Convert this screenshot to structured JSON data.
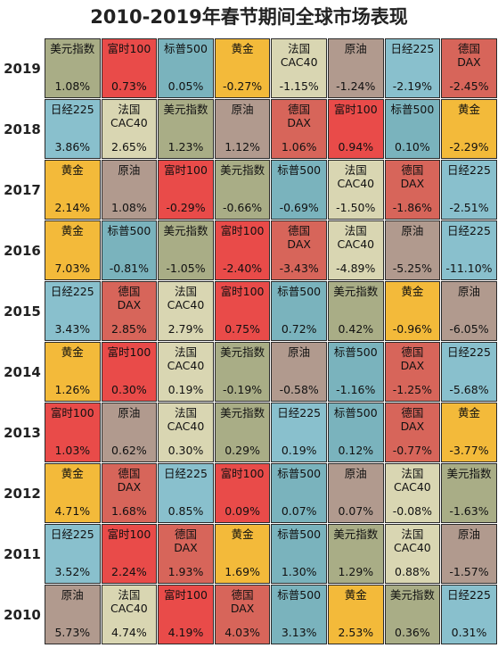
{
  "colors": {
    "美元指数": "#a9ad86",
    "富时100": "#e94b49",
    "标普500": "#7ab3bd",
    "黄金": "#f3ba3a",
    "法国\nCAC40": "#d9d6b2",
    "原油": "#b19a8e",
    "日经225": "#89c0cd",
    "德国\nDAX": "#d7655a"
  },
  "chart_data": {
    "type": "table",
    "title": "2010-2019年春节期间全球市场表现",
    "rows": [
      {
        "year": "2019",
        "cells": [
          {
            "name": "美元指数",
            "value": "1.08%"
          },
          {
            "name": "富时100",
            "value": "0.73%"
          },
          {
            "name": "标普500",
            "value": "0.05%"
          },
          {
            "name": "黄金",
            "value": "-0.27%"
          },
          {
            "name": "法国\nCAC40",
            "value": "-1.15%"
          },
          {
            "name": "原油",
            "value": "-1.24%"
          },
          {
            "name": "日经225",
            "value": "-2.19%"
          },
          {
            "name": "德国\nDAX",
            "value": "-2.45%"
          }
        ]
      },
      {
        "year": "2018",
        "cells": [
          {
            "name": "日经225",
            "value": "3.86%"
          },
          {
            "name": "法国\nCAC40",
            "value": "2.65%"
          },
          {
            "name": "美元指数",
            "value": "1.23%"
          },
          {
            "name": "原油",
            "value": "1.12%"
          },
          {
            "name": "德国\nDAX",
            "value": "1.06%"
          },
          {
            "name": "富时100",
            "value": "0.94%"
          },
          {
            "name": "标普500",
            "value": "0.10%"
          },
          {
            "name": "黄金",
            "value": "-2.29%"
          }
        ]
      },
      {
        "year": "2017",
        "cells": [
          {
            "name": "黄金",
            "value": "2.14%"
          },
          {
            "name": "原油",
            "value": "1.08%"
          },
          {
            "name": "富时100",
            "value": "-0.29%"
          },
          {
            "name": "美元指数",
            "value": "-0.66%"
          },
          {
            "name": "标普500",
            "value": "-0.69%"
          },
          {
            "name": "法国\nCAC40",
            "value": "-1.50%"
          },
          {
            "name": "德国\nDAX",
            "value": "-1.86%"
          },
          {
            "name": "日经225",
            "value": "-2.51%"
          }
        ]
      },
      {
        "year": "2016",
        "cells": [
          {
            "name": "黄金",
            "value": "7.03%"
          },
          {
            "name": "标普500",
            "value": "-0.81%"
          },
          {
            "name": "美元指数",
            "value": "-1.05%"
          },
          {
            "name": "富时100",
            "value": "-2.40%"
          },
          {
            "name": "德国\nDAX",
            "value": "-3.43%"
          },
          {
            "name": "法国\nCAC40",
            "value": "-4.89%"
          },
          {
            "name": "原油",
            "value": "-5.25%"
          },
          {
            "name": "日经225",
            "value": "-11.10%"
          }
        ]
      },
      {
        "year": "2015",
        "cells": [
          {
            "name": "日经225",
            "value": "3.43%"
          },
          {
            "name": "德国\nDAX",
            "value": "2.85%"
          },
          {
            "name": "法国\nCAC40",
            "value": "2.79%"
          },
          {
            "name": "富时100",
            "value": "0.75%"
          },
          {
            "name": "标普500",
            "value": "0.72%"
          },
          {
            "name": "美元指数",
            "value": "0.42%"
          },
          {
            "name": "黄金",
            "value": "-0.96%"
          },
          {
            "name": "原油",
            "value": "-6.05%"
          }
        ]
      },
      {
        "year": "2014",
        "cells": [
          {
            "name": "黄金",
            "value": "1.26%"
          },
          {
            "name": "富时100",
            "value": "0.30%"
          },
          {
            "name": "法国\nCAC40",
            "value": "0.19%"
          },
          {
            "name": "美元指数",
            "value": "-0.19%"
          },
          {
            "name": "原油",
            "value": "-0.58%"
          },
          {
            "name": "标普500",
            "value": "-1.16%"
          },
          {
            "name": "德国\nDAX",
            "value": "-1.25%"
          },
          {
            "name": "日经225",
            "value": "-5.68%"
          }
        ]
      },
      {
        "year": "2013",
        "cells": [
          {
            "name": "富时100",
            "value": "1.03%"
          },
          {
            "name": "原油",
            "value": "0.62%"
          },
          {
            "name": "法国\nCAC40",
            "value": "0.30%"
          },
          {
            "name": "美元指数",
            "value": "0.29%"
          },
          {
            "name": "日经225",
            "value": "0.19%"
          },
          {
            "name": "标普500",
            "value": "0.12%"
          },
          {
            "name": "德国\nDAX",
            "value": "-0.77%"
          },
          {
            "name": "黄金",
            "value": "-3.77%"
          }
        ]
      },
      {
        "year": "2012",
        "cells": [
          {
            "name": "黄金",
            "value": "4.71%"
          },
          {
            "name": "德国\nDAX",
            "value": "1.68%"
          },
          {
            "name": "日经225",
            "value": "0.85%"
          },
          {
            "name": "富时100",
            "value": "0.09%"
          },
          {
            "name": "标普500",
            "value": "0.07%"
          },
          {
            "name": "原油",
            "value": "0.07%"
          },
          {
            "name": "法国\nCAC40",
            "value": "-0.08%"
          },
          {
            "name": "美元指数",
            "value": "-1.63%"
          }
        ]
      },
      {
        "year": "2011",
        "cells": [
          {
            "name": "日经225",
            "value": "3.52%"
          },
          {
            "name": "富时100",
            "value": "2.24%"
          },
          {
            "name": "德国\nDAX",
            "value": "1.93%"
          },
          {
            "name": "黄金",
            "value": "1.69%"
          },
          {
            "name": "标普500",
            "value": "1.30%"
          },
          {
            "name": "美元指数",
            "value": "1.29%"
          },
          {
            "name": "法国\nCAC40",
            "value": "0.88%"
          },
          {
            "name": "原油",
            "value": "-1.57%"
          }
        ]
      },
      {
        "year": "2010",
        "cells": [
          {
            "name": "原油",
            "value": "5.73%"
          },
          {
            "name": "法国\nCAC40",
            "value": "4.74%"
          },
          {
            "name": "富时100",
            "value": "4.19%"
          },
          {
            "name": "德国\nDAX",
            "value": "4.03%"
          },
          {
            "name": "标普500",
            "value": "3.13%"
          },
          {
            "name": "黄金",
            "value": "2.53%"
          },
          {
            "name": "美元指数",
            "value": "0.36%"
          },
          {
            "name": "日经225",
            "value": "0.31%"
          }
        ]
      }
    ]
  }
}
